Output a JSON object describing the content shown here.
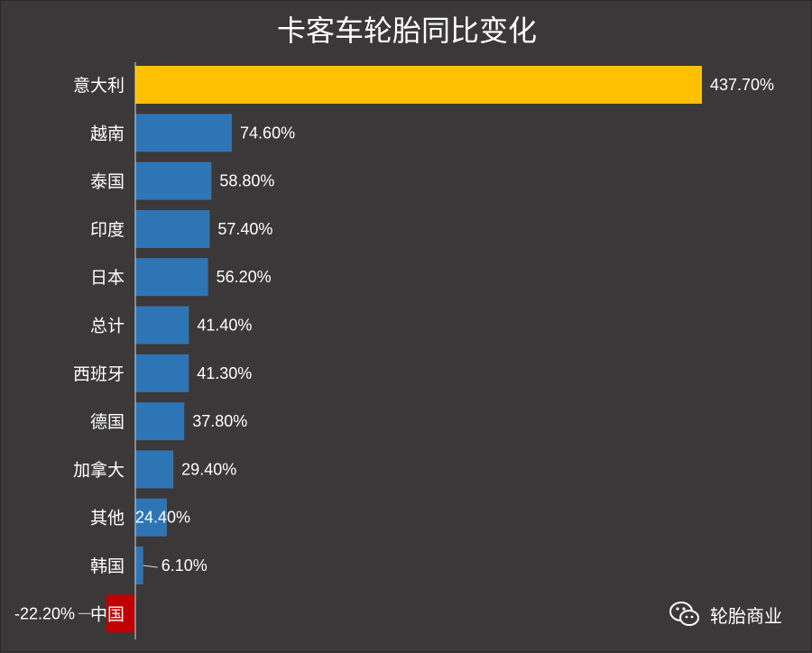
{
  "colors": {
    "background": "#3a3838",
    "bar_default": "#2e75b6",
    "bar_highlight": "#ffc000",
    "bar_negative": "#c00000",
    "text": "#ffffff",
    "axis": "#d9d9d9"
  },
  "watermark": {
    "icon": "wechat-icon",
    "text": "轮胎商业"
  },
  "chart_data": {
    "type": "bar",
    "orientation": "horizontal",
    "title": "卡客车轮胎同比变化",
    "unit": "%",
    "categories": [
      "意大利",
      "越南",
      "泰国",
      "印度",
      "日本",
      "总计",
      "西班牙",
      "德国",
      "加拿大",
      "其他",
      "韩国",
      "中国"
    ],
    "values": [
      437.7,
      74.6,
      58.8,
      57.4,
      56.2,
      41.4,
      41.3,
      37.8,
      29.4,
      24.4,
      6.1,
      -22.2
    ],
    "labels": [
      "437.70%",
      "74.60%",
      "58.80%",
      "57.40%",
      "56.20%",
      "41.40%",
      "41.30%",
      "37.80%",
      "29.40%",
      "24.40%",
      "6.10%",
      "-22.20%"
    ],
    "highlight": {
      "意大利": "highlight",
      "中国": "negative"
    },
    "xlim": [
      -22.2,
      437.7
    ],
    "grid": false,
    "legend": "none"
  }
}
